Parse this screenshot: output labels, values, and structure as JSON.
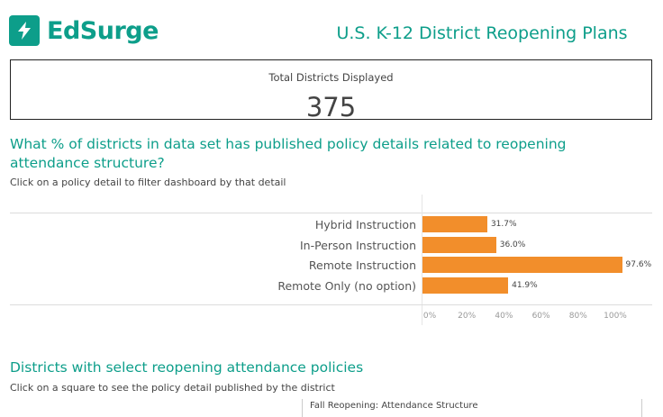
{
  "brand": {
    "name": "EdSurge",
    "mark_icon": "lightning-bolt-icon",
    "color": "#0d9e8a"
  },
  "title": "U.S. K-12 District Reopening Plans",
  "kpi": {
    "label": "Total Districts Displayed",
    "value": "375"
  },
  "section1": {
    "title": "What % of districts in data set has published policy details related to reopening attendance structure?",
    "subtitle": "Click on a policy detail to filter dashboard by that detail"
  },
  "chart_data": {
    "type": "bar",
    "orientation": "horizontal",
    "categories": [
      "Hybrid Instruction",
      "In-Person Instruction",
      "Remote Instruction",
      "Remote Only (no option)"
    ],
    "values": [
      31.7,
      36.0,
      97.6,
      41.9
    ],
    "value_labels": [
      "31.7%",
      "36.0%",
      "97.6%",
      "41.9%"
    ],
    "xlim": [
      0,
      100
    ],
    "x_ticks": [
      "0%",
      "20%",
      "40%",
      "60%",
      "80%",
      "100%"
    ],
    "bar_color": "#f28e2b"
  },
  "section2": {
    "title": "Districts with select reopening attendance policies",
    "subtitle": "Click on a square to see the policy detail published by the district",
    "header": "Fall Reopening: Attendance Structure"
  }
}
